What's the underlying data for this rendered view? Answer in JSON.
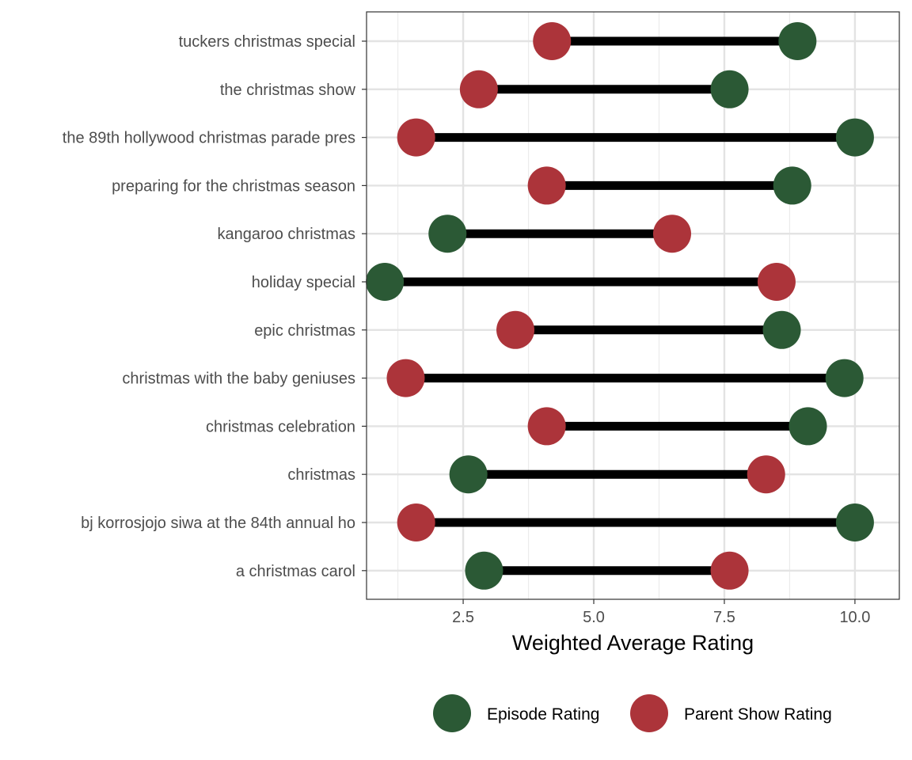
{
  "chart_data": {
    "type": "dumbbell",
    "xlabel": "Weighted Average Rating",
    "xlim": [
      0.65,
      10.85
    ],
    "xticks": [
      2.5,
      5.0,
      7.5,
      10.0
    ],
    "xtick_labels": [
      "2.5",
      "5.0",
      "7.5",
      "10.0"
    ],
    "grid": true,
    "legend_position": "bottom",
    "categories": [
      "tuckers christmas special",
      "the christmas show",
      "the 89th hollywood christmas parade pres",
      "preparing for the christmas season",
      "kangaroo christmas",
      "holiday special",
      "epic christmas",
      "christmas with the baby geniuses",
      "christmas celebration",
      "christmas",
      "bj korrosjojo siwa at the 84th annual ho",
      "a christmas carol"
    ],
    "series": [
      {
        "name": "Episode Rating",
        "color": "#2b5935",
        "values": [
          8.9,
          7.6,
          10.0,
          8.8,
          2.2,
          1.0,
          8.6,
          9.8,
          9.1,
          2.6,
          10.0,
          2.9
        ]
      },
      {
        "name": "Parent Show Rating",
        "color": "#ac343a",
        "values": [
          4.2,
          2.8,
          1.6,
          4.1,
          6.5,
          8.5,
          3.5,
          1.4,
          4.1,
          8.3,
          1.6,
          7.6
        ]
      }
    ]
  }
}
